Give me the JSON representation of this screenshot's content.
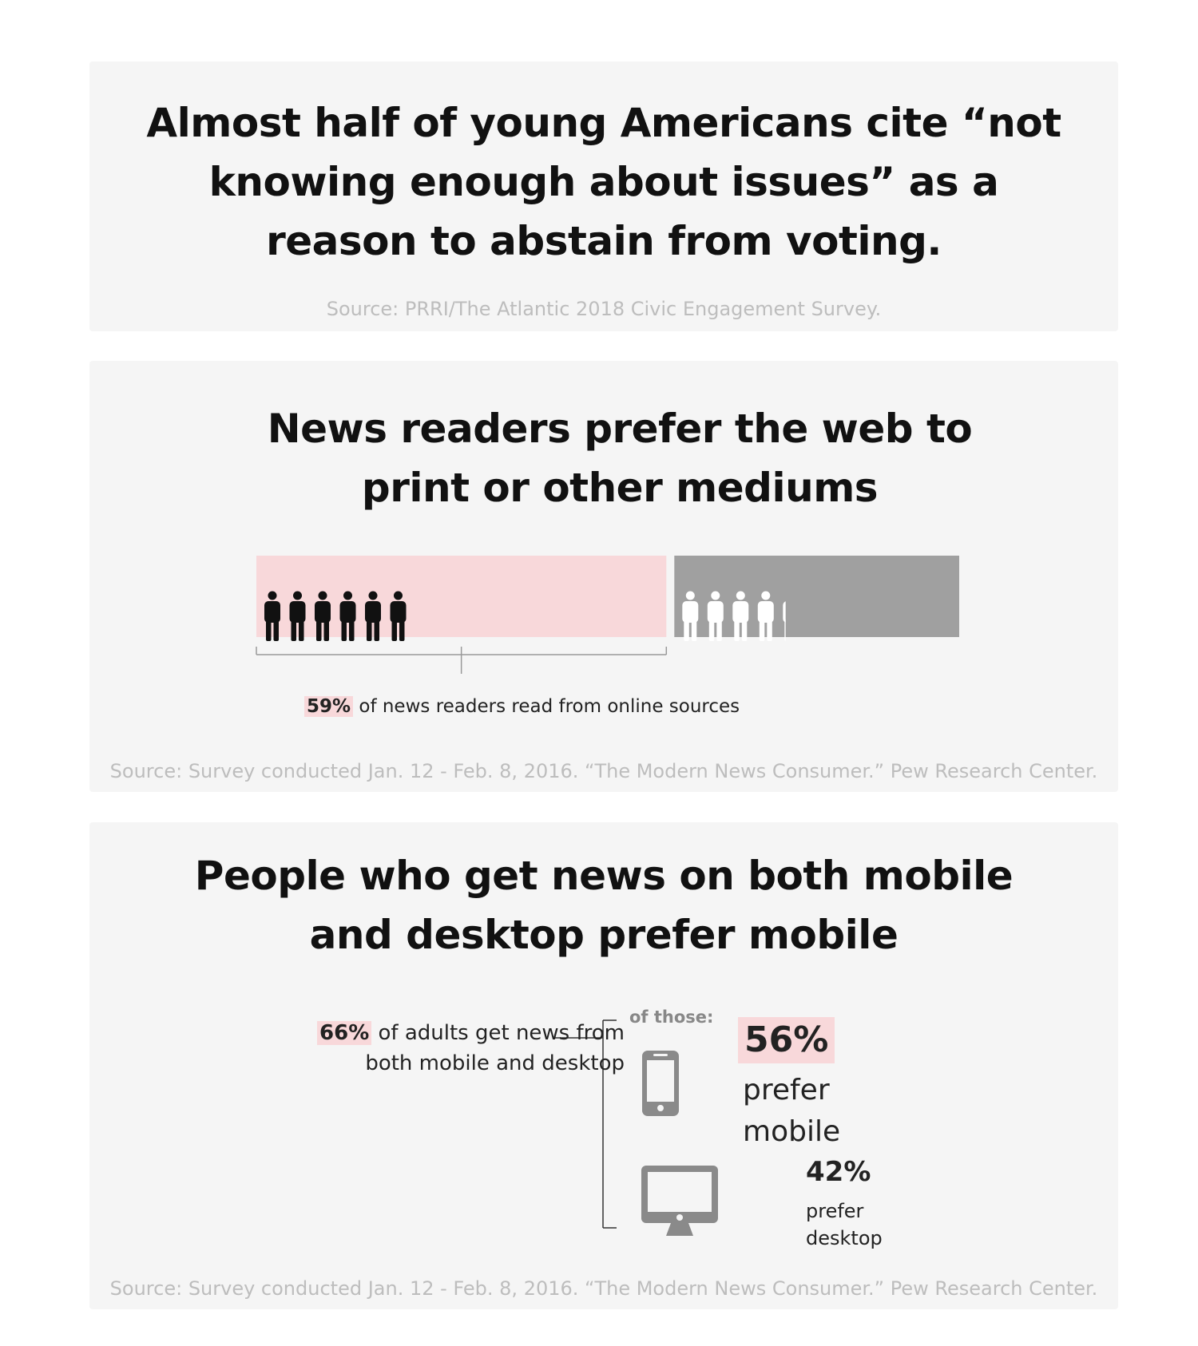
{
  "cards": [
    {
      "title": "Almost half of young Americans cite “not knowing enough about issues” as a reason to abstain from voting.",
      "source": "Source: PRRI/The Atlantic 2018 Civic Engagement Survey."
    },
    {
      "title": "News readers prefer the web to print or other mediums",
      "source": "Source: Survey conducted Jan. 12 - Feb. 8, 2016. “The Modern News Consumer.” Pew Research Center."
    },
    {
      "title": "People who get news on both mobile and desktop prefer mobile",
      "source": "Source: Survey conducted Jan. 12 - Feb. 8, 2016. “The Modern News Consumer.” Pew Research Center."
    }
  ],
  "chart_data": [
    {
      "type": "bar",
      "title": "News readers prefer the web to print or other mediums",
      "categories": [
        "online sources",
        "other"
      ],
      "values": [
        59,
        41
      ],
      "unit": "%",
      "colors": {
        "online": "#f8d8da",
        "other": "#a0a0a0",
        "online_icons": "#111111",
        "other_icons": "#ffffff"
      },
      "icons": {
        "online_count": 6,
        "other_count": 4,
        "other_partial": 0.2,
        "name": "person-icon"
      },
      "annotation": {
        "pct": "59%",
        "text": "of news readers read from online sources"
      }
    },
    {
      "type": "table",
      "title": "People who get news on both mobile and desktop prefer mobile",
      "base": {
        "pct": "66%",
        "text": "of adults get news from both mobile and desktop",
        "value": 66
      },
      "subgroup_label": "of those:",
      "categories": [
        "mobile",
        "desktop"
      ],
      "values": [
        56,
        42
      ],
      "labels": [
        {
          "pct": "56%",
          "text": "prefer mobile",
          "icon": "smartphone-icon"
        },
        {
          "pct": "42%",
          "text": "prefer desktop",
          "icon": "monitor-icon"
        }
      ],
      "colors": {
        "highlight": "#f8d8da",
        "icon": "#8a8a8a"
      }
    }
  ]
}
